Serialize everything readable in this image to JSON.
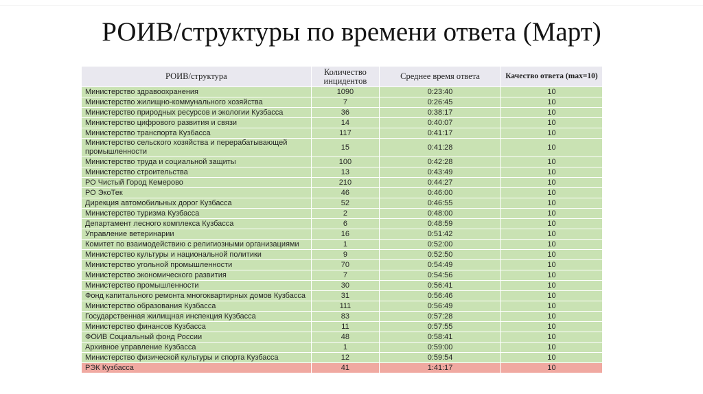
{
  "title": "РОИВ/структуры по времени ответа (Март)",
  "colors": {
    "header_bg": "#E9E8EF",
    "row_green": "#C9E2B3",
    "row_red": "#F0A9A1",
    "body_text": "#262626"
  },
  "table": {
    "headers": [
      "РОИВ/структура",
      "Количество инцидентов",
      "Среднее время ответа",
      "Качество ответа (max=10)"
    ],
    "rows": [
      {
        "name": "Министерство здравоохранения",
        "incidents": "1090",
        "avg_time": "0:23:40",
        "quality": "10",
        "highlight": "green"
      },
      {
        "name": "Министерство жилищно-коммунального хозяйства",
        "incidents": "7",
        "avg_time": "0:26:45",
        "quality": "10",
        "highlight": "green"
      },
      {
        "name": "Министерство природных ресурсов и экологии Кузбасса",
        "incidents": "36",
        "avg_time": "0:38:17",
        "quality": "10",
        "highlight": "green"
      },
      {
        "name": "Министерство цифрового развития и связи",
        "incidents": "14",
        "avg_time": "0:40:07",
        "quality": "10",
        "highlight": "green"
      },
      {
        "name": "Министерство транспорта Кузбасса",
        "incidents": "117",
        "avg_time": "0:41:17",
        "quality": "10",
        "highlight": "green"
      },
      {
        "name": "Министерство сельского хозяйства и перерабатывающей промышленности",
        "incidents": "15",
        "avg_time": "0:41:28",
        "quality": "10",
        "highlight": "green"
      },
      {
        "name": "Министерство труда и социальной защиты",
        "incidents": "100",
        "avg_time": "0:42:28",
        "quality": "10",
        "highlight": "green"
      },
      {
        "name": "Министерство строительства",
        "incidents": "13",
        "avg_time": "0:43:49",
        "quality": "10",
        "highlight": "green"
      },
      {
        "name": "РО Чистый Город Кемерово",
        "incidents": "210",
        "avg_time": "0:44:27",
        "quality": "10",
        "highlight": "green"
      },
      {
        "name": "РО ЭкоТек",
        "incidents": "46",
        "avg_time": "0:46:00",
        "quality": "10",
        "highlight": "green"
      },
      {
        "name": "Дирекция автомобильных дорог Кузбасса",
        "incidents": "52",
        "avg_time": "0:46:55",
        "quality": "10",
        "highlight": "green"
      },
      {
        "name": "Министерство туризма Кузбасса",
        "incidents": "2",
        "avg_time": "0:48:00",
        "quality": "10",
        "highlight": "green"
      },
      {
        "name": "Департамент лесного комплекса Кузбасса",
        "incidents": "6",
        "avg_time": "0:48:59",
        "quality": "10",
        "highlight": "green"
      },
      {
        "name": "Управление ветеринарии",
        "incidents": "16",
        "avg_time": "0:51:42",
        "quality": "10",
        "highlight": "green"
      },
      {
        "name": "Комитет по взаимодействию с религиозными организациями",
        "incidents": "1",
        "avg_time": "0:52:00",
        "quality": "10",
        "highlight": "green"
      },
      {
        "name": "Министерство культуры и национальной политики",
        "incidents": "9",
        "avg_time": "0:52:50",
        "quality": "10",
        "highlight": "green"
      },
      {
        "name": "Министерство угольной промышленности",
        "incidents": "70",
        "avg_time": "0:54:49",
        "quality": "10",
        "highlight": "green"
      },
      {
        "name": "Министерство экономического развития",
        "incidents": "7",
        "avg_time": "0:54:56",
        "quality": "10",
        "highlight": "green"
      },
      {
        "name": "Министерство промышленности",
        "incidents": "30",
        "avg_time": "0:56:41",
        "quality": "10",
        "highlight": "green"
      },
      {
        "name": "Фонд  капитального ремонта многоквартирных домов Кузбасса",
        "incidents": "31",
        "avg_time": "0:56:46",
        "quality": "10",
        "highlight": "green"
      },
      {
        "name": "Министерство образования Кузбасса",
        "incidents": "111",
        "avg_time": "0:56:49",
        "quality": "10",
        "highlight": "green"
      },
      {
        "name": "Государственная жилищная инспекция Кузбасса",
        "incidents": "83",
        "avg_time": "0:57:28",
        "quality": "10",
        "highlight": "green"
      },
      {
        "name": "Министерство финансов Кузбасса",
        "incidents": "11",
        "avg_time": "0:57:55",
        "quality": "10",
        "highlight": "green"
      },
      {
        "name": "ФОИВ Социальный фонд России",
        "incidents": "48",
        "avg_time": "0:58:41",
        "quality": "10",
        "highlight": "green"
      },
      {
        "name": "Архивное управление Кузбасса",
        "incidents": "1",
        "avg_time": "0:59:00",
        "quality": "10",
        "highlight": "green"
      },
      {
        "name": "Министерство физической культуры и спорта Кузбасса",
        "incidents": "12",
        "avg_time": "0:59:54",
        "quality": "10",
        "highlight": "green"
      },
      {
        "name": "РЭК Кузбасса",
        "incidents": "41",
        "avg_time": "1:41:17",
        "quality": "10",
        "highlight": "red"
      }
    ]
  }
}
